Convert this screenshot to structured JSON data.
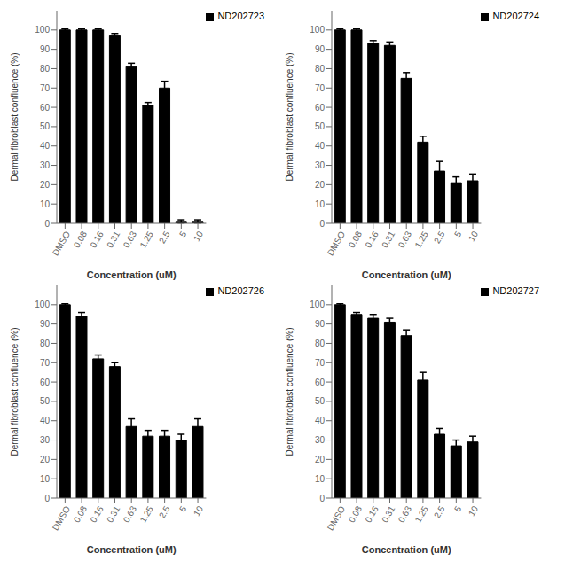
{
  "chart_data": [
    {
      "type": "bar",
      "categories": [
        "DMSO",
        "0.08",
        "0.16",
        "0.31",
        "0.63",
        "1.25",
        "2.5",
        "5",
        "10"
      ],
      "series": [
        {
          "name": "ND202723",
          "color": "#000000",
          "values": [
            100,
            100,
            100,
            97,
            81,
            61,
            70,
            1,
            1
          ],
          "errors": [
            0.5,
            0.5,
            0.5,
            1.2,
            1.8,
            1.5,
            3.5,
            0.8,
            0.8
          ]
        }
      ],
      "xlabel": "Concentration (uM)",
      "ylabel": "Dermal fibroblast confluence (%)",
      "ylim": [
        0,
        110
      ],
      "yticks": [
        0,
        10,
        20,
        30,
        40,
        50,
        60,
        70,
        80,
        90,
        100
      ],
      "legend": "upper right",
      "grid": false
    },
    {
      "type": "bar",
      "categories": [
        "DMSO",
        "0.08",
        "0.16",
        "0.31",
        "0.63",
        "1.25",
        "2.5",
        "5",
        "10"
      ],
      "series": [
        {
          "name": "ND202724",
          "color": "#000000",
          "values": [
            100,
            100,
            93,
            92,
            75,
            42,
            27,
            21,
            22
          ],
          "errors": [
            0.5,
            0.5,
            1.5,
            1.8,
            3.0,
            3.0,
            5.0,
            3.0,
            3.5
          ]
        }
      ],
      "xlabel": "Concentration (uM)",
      "ylabel": "Dermal fibroblast confluence (%)",
      "ylim": [
        0,
        110
      ],
      "yticks": [
        0,
        10,
        20,
        30,
        40,
        50,
        60,
        70,
        80,
        90,
        100
      ],
      "legend": "upper right",
      "grid": false
    },
    {
      "type": "bar",
      "categories": [
        "DMSO",
        "0.08",
        "0.16",
        "0.31",
        "0.63",
        "1.25",
        "2.5",
        "5",
        "10"
      ],
      "series": [
        {
          "name": "ND202726",
          "color": "#000000",
          "values": [
            100,
            94,
            72,
            68,
            37,
            32,
            32,
            30,
            37
          ],
          "errors": [
            0.5,
            2.0,
            2.0,
            2.0,
            4.0,
            3.0,
            3.0,
            3.0,
            4.0
          ]
        }
      ],
      "xlabel": "Concentration (uM)",
      "ylabel": "Dermal fibroblast confluence (%)",
      "ylim": [
        0,
        110
      ],
      "yticks": [
        0,
        10,
        20,
        30,
        40,
        50,
        60,
        70,
        80,
        90,
        100
      ],
      "legend": "upper right",
      "grid": false
    },
    {
      "type": "bar",
      "categories": [
        "DMSO",
        "0.08",
        "0.16",
        "0.31",
        "0.63",
        "1.25",
        "2.5",
        "5",
        "10"
      ],
      "series": [
        {
          "name": "ND202727",
          "color": "#000000",
          "values": [
            100,
            95,
            93,
            91,
            84,
            61,
            33,
            27,
            29
          ],
          "errors": [
            0.5,
            1.0,
            2.0,
            2.0,
            3.0,
            4.0,
            3.0,
            3.0,
            3.0
          ]
        }
      ],
      "xlabel": "Concentration (uM)",
      "ylabel": "Dermal fibroblast confluence (%)",
      "ylim": [
        0,
        110
      ],
      "yticks": [
        0,
        10,
        20,
        30,
        40,
        50,
        60,
        70,
        80,
        90,
        100
      ],
      "legend": "upper right",
      "grid": false
    }
  ]
}
